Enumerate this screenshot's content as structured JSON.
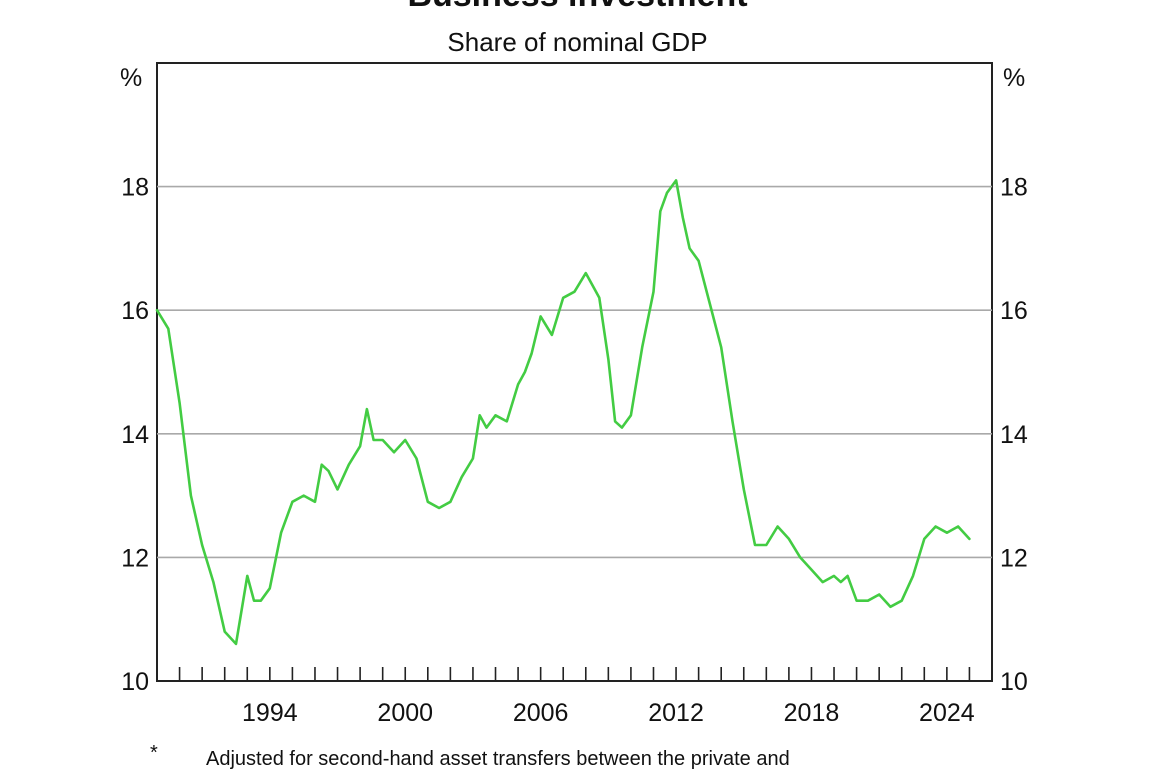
{
  "chart_data": {
    "type": "line",
    "title": "Business investment",
    "subtitle": "Share of nominal GDP",
    "unit_left": "%",
    "unit_right": "%",
    "ylim": [
      10,
      20
    ],
    "yticks": [
      10,
      12,
      14,
      16,
      18
    ],
    "xlim": [
      1989,
      2026
    ],
    "xticks": [
      1994,
      2000,
      2006,
      2012,
      2018,
      2024
    ],
    "grid": true,
    "line_color": "#43cc43",
    "footnote_mark": "*",
    "footnote": "Adjusted for second-hand asset transfers between the private and",
    "series": [
      {
        "x": [
          1989.0,
          1989.5,
          1990.0,
          1990.5,
          1991.0,
          1991.5,
          1992.0,
          1992.5,
          1993.0,
          1993.3,
          1993.6,
          1994.0,
          1994.5,
          1995.0,
          1995.5,
          1996.0,
          1996.3,
          1996.6,
          1997.0,
          1997.5,
          1998.0,
          1998.3,
          1998.6,
          1999.0,
          1999.5,
          2000.0,
          2000.5,
          2001.0,
          2001.5,
          2002.0,
          2002.5,
          2003.0,
          2003.3,
          2003.6,
          2004.0,
          2004.5,
          2005.0,
          2005.3,
          2005.6,
          2006.0,
          2006.5,
          2007.0,
          2007.5,
          2008.0,
          2008.3,
          2008.6,
          2009.0,
          2009.3,
          2009.6,
          2010.0,
          2010.5,
          2011.0,
          2011.3,
          2011.6,
          2012.0,
          2012.3,
          2012.6,
          2013.0,
          2013.5,
          2014.0,
          2014.5,
          2015.0,
          2015.5,
          2016.0,
          2016.5,
          2017.0,
          2017.5,
          2018.0,
          2018.5,
          2019.0,
          2019.3,
          2019.6,
          2020.0,
          2020.5,
          2021.0,
          2021.5,
          2022.0,
          2022.5,
          2023.0,
          2023.5,
          2024.0,
          2024.5,
          2025.0
        ],
        "y": [
          16.0,
          15.7,
          14.5,
          13.0,
          12.2,
          11.6,
          10.8,
          10.6,
          11.7,
          11.3,
          11.3,
          11.5,
          12.4,
          12.9,
          13.0,
          12.9,
          13.5,
          13.4,
          13.1,
          13.5,
          13.8,
          14.4,
          13.9,
          13.9,
          13.7,
          13.9,
          13.6,
          12.9,
          12.8,
          12.9,
          13.3,
          13.6,
          14.3,
          14.1,
          14.3,
          14.2,
          14.8,
          15.0,
          15.3,
          15.9,
          15.6,
          16.2,
          16.3,
          16.6,
          16.4,
          16.2,
          15.2,
          14.2,
          14.1,
          14.3,
          15.4,
          16.3,
          17.6,
          17.9,
          18.1,
          17.5,
          17.0,
          16.8,
          16.1,
          15.4,
          14.2,
          13.1,
          12.2,
          12.2,
          12.5,
          12.3,
          12.0,
          11.8,
          11.6,
          11.7,
          11.6,
          11.7,
          11.3,
          11.3,
          11.4,
          11.2,
          11.3,
          11.7,
          12.3,
          12.5,
          12.4,
          12.5,
          12.3
        ]
      }
    ]
  }
}
